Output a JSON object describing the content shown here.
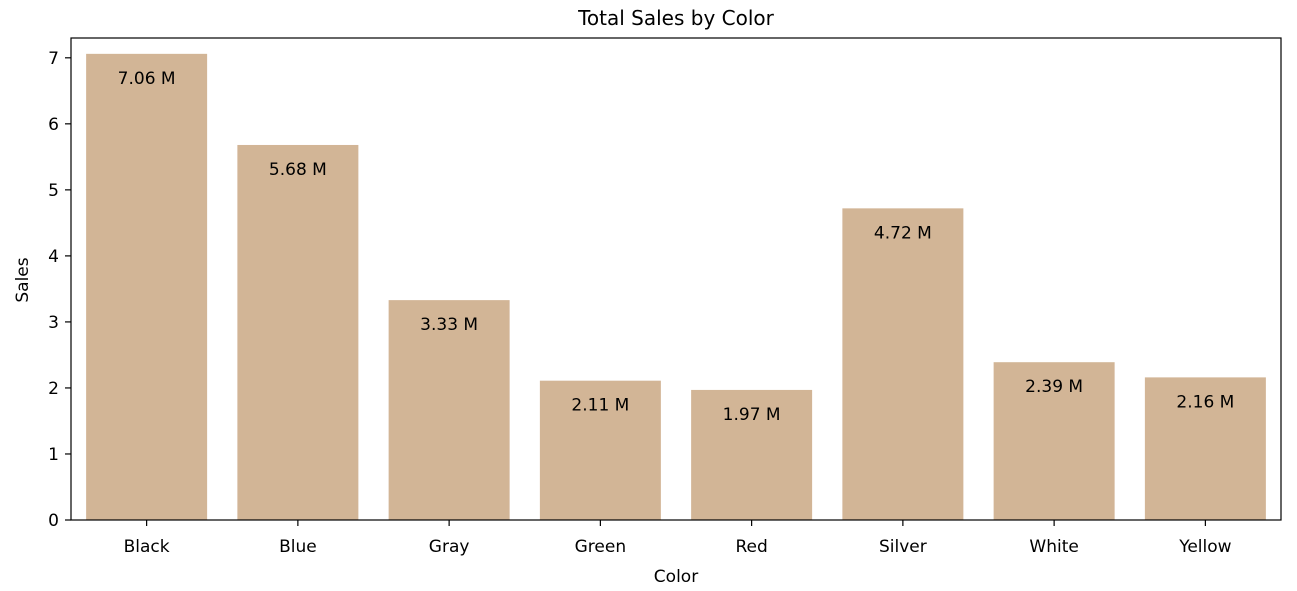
{
  "chart_data": {
    "type": "bar",
    "title": "Total Sales by Color",
    "xlabel": "Color",
    "ylabel": "Sales",
    "categories": [
      "Black",
      "Blue",
      "Gray",
      "Green",
      "Red",
      "Silver",
      "White",
      "Yellow"
    ],
    "values": [
      7.06,
      5.68,
      3.33,
      2.11,
      1.97,
      4.72,
      2.39,
      2.16
    ],
    "data_labels": [
      "7.06 M",
      "5.68 M",
      "3.33 M",
      "2.11 M",
      "1.97 M",
      "4.72 M",
      "2.39 M",
      "2.16 M"
    ],
    "yticks": [
      "0",
      "1",
      "2",
      "3",
      "4",
      "5",
      "6",
      "7"
    ],
    "ylim": [
      0,
      7.3
    ],
    "grid": false,
    "legend": "none",
    "bar_color": "#d2b596"
  }
}
